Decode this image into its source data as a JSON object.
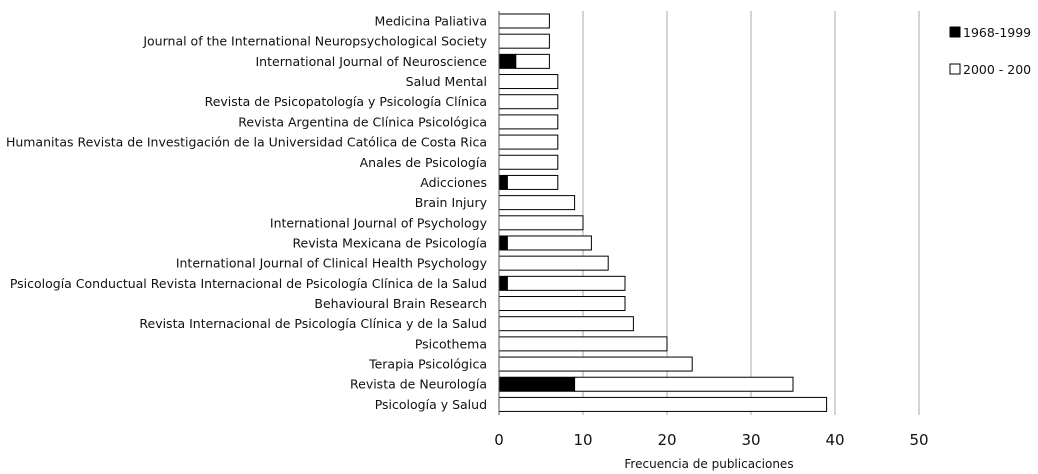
{
  "chart_data": {
    "type": "bar",
    "orientation": "horizontal",
    "stacked": true,
    "title": "",
    "xlabel": "Frecuencia de publicaciones",
    "ylabel": "",
    "xlim": [
      0,
      50
    ],
    "xticks": [
      "0",
      "10",
      "20",
      "30",
      "40",
      "50"
    ],
    "grid": true,
    "legend_position": "top-right",
    "categories": [
      "Medicina Paliativa",
      "Journal of the International Neuropsychological Society",
      "International Journal of Neuroscience",
      "Salud Mental",
      "Revista de Psicopatología y Psicología Clínica",
      "Revista Argentina de Clínica Psicológica",
      "Humanitas Revista de Investigación de la Universidad Católica de Costa Rica",
      "Anales de Psicología",
      "Adicciones",
      "Brain Injury",
      "International Journal of Psychology",
      "Revista Mexicana de Psicología",
      "International Journal of Clinical Health Psychology",
      "Psicología Conductual Revista Internacional de Psicología Clínica de la Salud",
      "Behavioural Brain Research",
      "Revista Internacional de Psicología Clínica y de la Salud",
      "Psicothema",
      "Terapia Psicológica",
      "Revista de Neurología",
      "Psicología y Salud"
    ],
    "series": [
      {
        "name": "1968-1999",
        "color": "#000000",
        "values": [
          0,
          0,
          2,
          0,
          0,
          0,
          0,
          0,
          1,
          0,
          0,
          1,
          0,
          1,
          0,
          0,
          0,
          0,
          9,
          0
        ]
      },
      {
        "name": "2000 - 200",
        "color": "#ffffff",
        "values": [
          6,
          6,
          4,
          7,
          7,
          7,
          7,
          7,
          6,
          9,
          10,
          10,
          13,
          14,
          15,
          16,
          20,
          23,
          26,
          39
        ]
      }
    ]
  }
}
